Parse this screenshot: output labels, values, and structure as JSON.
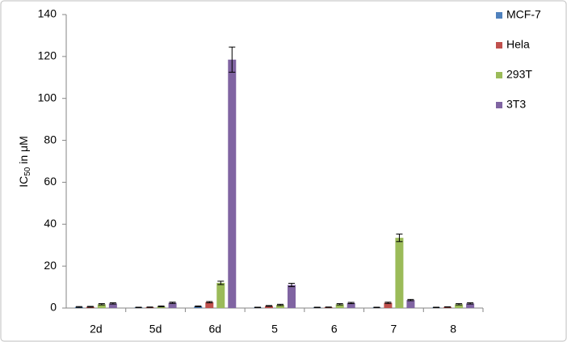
{
  "chart_data": {
    "type": "bar",
    "y_label_parts": [
      "IC",
      "50",
      " in μM"
    ],
    "categories": [
      "2d",
      "5d",
      "6d",
      "5",
      "6",
      "7",
      "8"
    ],
    "series": [
      {
        "name": "MCF-7",
        "color": "#4f81bd",
        "values": [
          0.5,
          0.3,
          0.8,
          0.3,
          0.3,
          0.3,
          0.3
        ],
        "errors": [
          0.2,
          0.1,
          0.2,
          0.1,
          0.1,
          0.1,
          0.1
        ]
      },
      {
        "name": "Hela",
        "color": "#c0504d",
        "values": [
          0.6,
          0.4,
          2.8,
          1.0,
          0.4,
          2.5,
          0.5
        ],
        "errors": [
          0.2,
          0.1,
          0.3,
          0.2,
          0.1,
          0.3,
          0.1
        ]
      },
      {
        "name": "293T",
        "color": "#9bbb59",
        "values": [
          1.8,
          0.8,
          12,
          1.5,
          1.8,
          33.5,
          1.8
        ],
        "errors": [
          0.3,
          0.2,
          0.8,
          0.3,
          0.3,
          1.8,
          0.3
        ]
      },
      {
        "name": "3T3",
        "color": "#8064a2",
        "values": [
          2.2,
          2.5,
          118.5,
          11,
          2.4,
          3.8,
          2.2
        ],
        "errors": [
          0.3,
          0.3,
          6,
          0.8,
          0.3,
          0.3,
          0.3
        ]
      }
    ],
    "ylim": [
      0,
      140
    ],
    "yticks": [
      0,
      20,
      40,
      60,
      80,
      100,
      120,
      140
    ],
    "grid": false,
    "legend": "right"
  }
}
